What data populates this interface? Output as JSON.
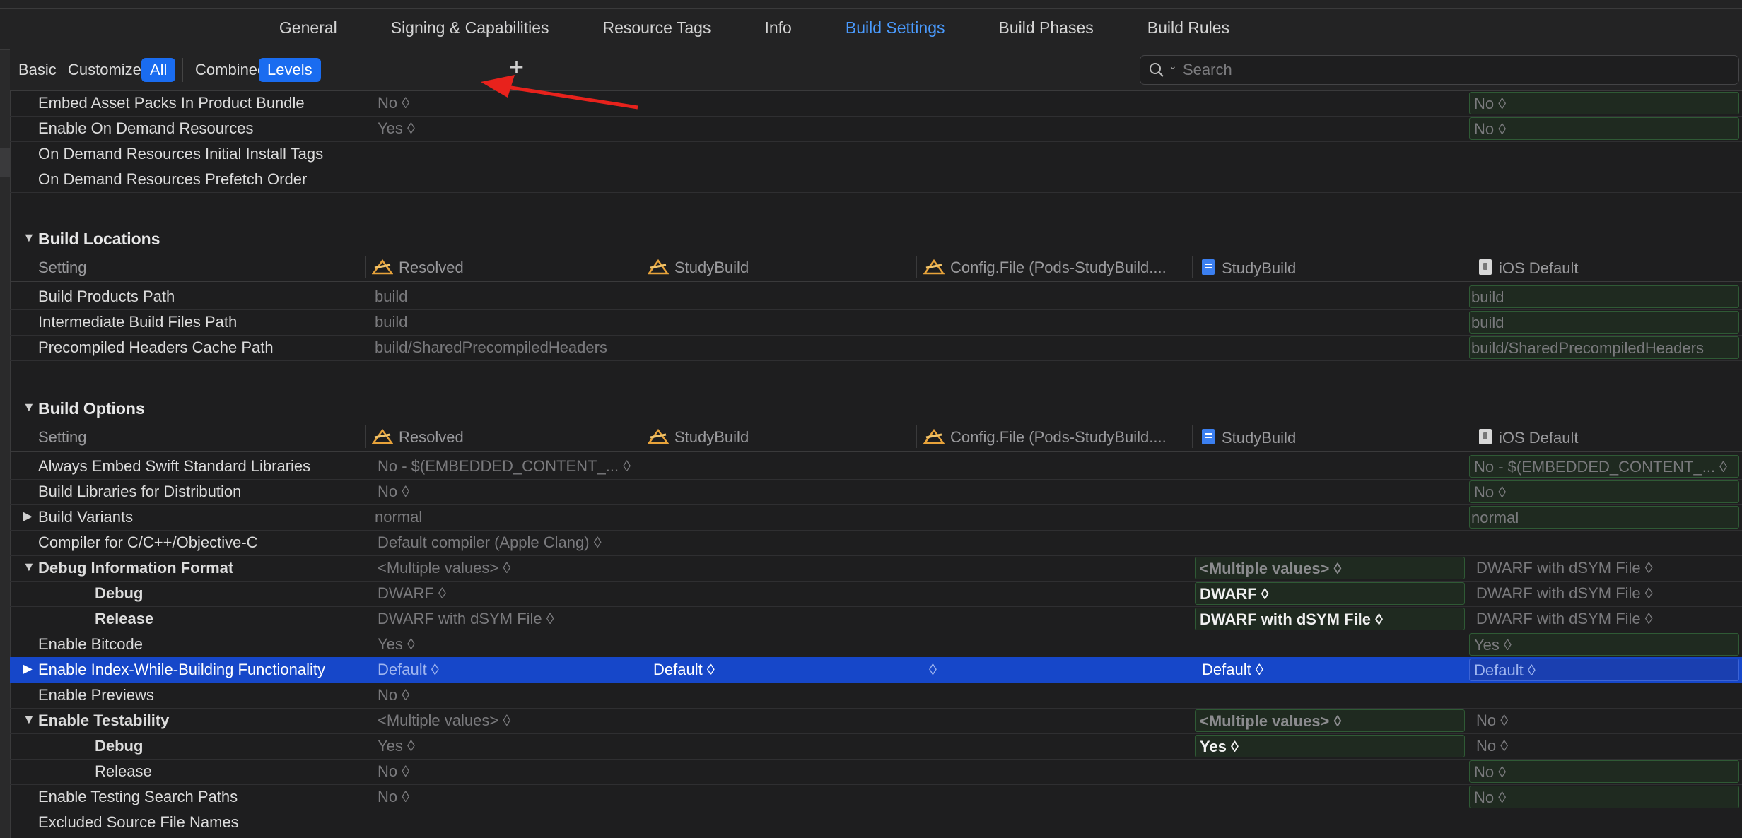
{
  "tabs": [
    "General",
    "Signing & Capabilities",
    "Resource Tags",
    "Info",
    "Build Settings",
    "Build Phases",
    "Build Rules"
  ],
  "active_tab": "Build Settings",
  "filter": {
    "basic": "Basic",
    "customized": "Customized",
    "all": "All",
    "combined": "Combined",
    "levels": "Levels",
    "search_placeholder": "Search"
  },
  "columns": {
    "setting": "Setting",
    "resolved": "Resolved",
    "target": "StudyBuild",
    "config": "Config.File (Pods-StudyBuild....",
    "project": "StudyBuild",
    "default": "iOS Default"
  },
  "rows_top": [
    {
      "name": "Embed Asset Packs In Product Bundle",
      "resolved": "No ◊",
      "default": "No ◊"
    },
    {
      "name": "Enable On Demand Resources",
      "resolved": "Yes ◊",
      "default": "No ◊"
    },
    {
      "name": "On Demand Resources Initial Install Tags"
    },
    {
      "name": "On Demand Resources Prefetch Order"
    }
  ],
  "sections": {
    "locations": "Build Locations",
    "options": "Build Options"
  },
  "rows_locations": [
    {
      "name": "Build Products Path",
      "resolved": "build",
      "default": "build"
    },
    {
      "name": "Intermediate Build Files Path",
      "resolved": "build",
      "default": "build"
    },
    {
      "name": "Precompiled Headers Cache Path",
      "resolved": "build/SharedPrecompiledHeaders",
      "default": "build/SharedPrecompiledHeaders"
    }
  ],
  "rows_options": [
    {
      "name": "Always Embed Swift Standard Libraries",
      "resolved": "No  -  $(EMBEDDED_CONTENT_... ◊",
      "default": "No  -  $(EMBEDDED_CONTENT_... ◊"
    },
    {
      "name": "Build Libraries for Distribution",
      "resolved": "No ◊",
      "default": "No ◊"
    },
    {
      "name": "Build Variants",
      "resolved": "normal",
      "default": "normal"
    },
    {
      "name": "Compiler for C/C++/Objective-C",
      "resolved": "Default compiler (Apple Clang) ◊"
    },
    {
      "name": "Debug Information Format",
      "resolved": "<Multiple values> ◊",
      "project": "<Multiple values> ◊",
      "default": "DWARF with dSYM File ◊"
    },
    {
      "name": "Debug",
      "resolved": "DWARF ◊",
      "project": "DWARF ◊",
      "default": "DWARF with dSYM File ◊"
    },
    {
      "name": "Release",
      "resolved": "DWARF with dSYM File ◊",
      "project": "DWARF with dSYM File ◊",
      "default": "DWARF with dSYM File ◊"
    },
    {
      "name": "Enable Bitcode",
      "resolved": "Yes ◊",
      "default": "Yes ◊"
    },
    {
      "name": "Enable Index-While-Building Functionality",
      "resolved": "Default ◊",
      "target": "Default ◊",
      "config": "◊",
      "project": "Default ◊",
      "default": "Default ◊"
    },
    {
      "name": "Enable Previews",
      "resolved": "No ◊"
    },
    {
      "name": "Enable Testability",
      "resolved": "<Multiple values> ◊",
      "project": "<Multiple values> ◊",
      "default": "No ◊"
    },
    {
      "name": "Debug",
      "resolved": "Yes ◊",
      "project": "Yes ◊",
      "default": "No ◊"
    },
    {
      "name": "Release",
      "resolved": "No ◊",
      "default": "No ◊"
    },
    {
      "name": "Enable Testing Search Paths",
      "resolved": "No ◊",
      "default": "No ◊"
    },
    {
      "name": "Excluded Source File Names"
    }
  ],
  "colors": {
    "accent": "#1a6cf0",
    "selected_row": "#1647c9",
    "arrow": "#e8221c"
  }
}
